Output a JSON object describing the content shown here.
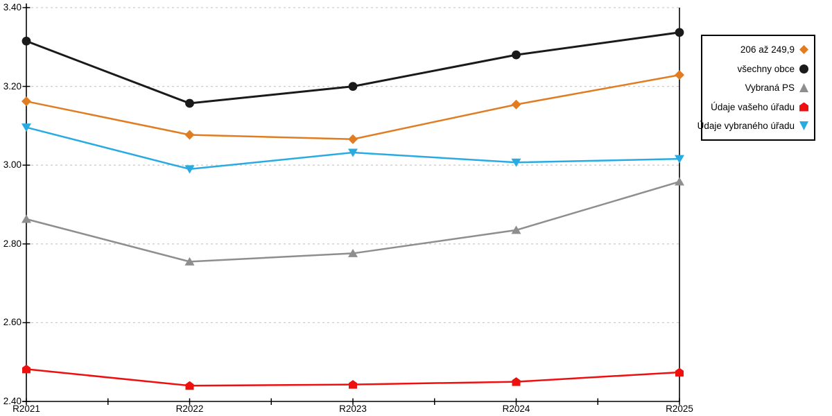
{
  "chart_data": {
    "type": "line",
    "categories": [
      "R2021",
      "R2022",
      "R2023",
      "R2024",
      "R2025"
    ],
    "series": [
      {
        "name": "206 až 249,9",
        "marker": "diamond",
        "color": "#e07c22",
        "values": [
          3.162,
          3.077,
          3.066,
          3.154,
          3.229
        ]
      },
      {
        "name": "všechny obce",
        "marker": "circle",
        "color": "#1a1a1a",
        "values": [
          3.315,
          3.157,
          3.2,
          3.28,
          3.337
        ]
      },
      {
        "name": "Vybraná PS",
        "marker": "triangle-up",
        "color": "#8e8e8e",
        "values": [
          2.863,
          2.755,
          2.776,
          2.835,
          2.958
        ]
      },
      {
        "name": "Údaje vašeho úřadu",
        "marker": "pentagon",
        "color": "#ee0f0f",
        "values": [
          2.482,
          2.44,
          2.443,
          2.45,
          2.474
        ]
      },
      {
        "name": "Údaje vybraného úřadu",
        "marker": "triangle-down",
        "color": "#29abe2",
        "values": [
          3.096,
          2.99,
          3.032,
          3.007,
          3.016
        ]
      }
    ],
    "title": "",
    "xlabel": "",
    "ylabel": "",
    "ylim": [
      2.4,
      3.4
    ],
    "yticks": [
      2.4,
      2.6,
      2.8,
      3.0,
      3.2,
      3.4
    ],
    "ytick_labels": [
      "2.40",
      "2.60",
      "2.80",
      "3.00",
      "3.20",
      "3.40"
    ],
    "grid": "horizontal-dashed",
    "gridline_color": "#cccccc",
    "axis_color": "#000000",
    "legend_position": "outside-right-top"
  }
}
